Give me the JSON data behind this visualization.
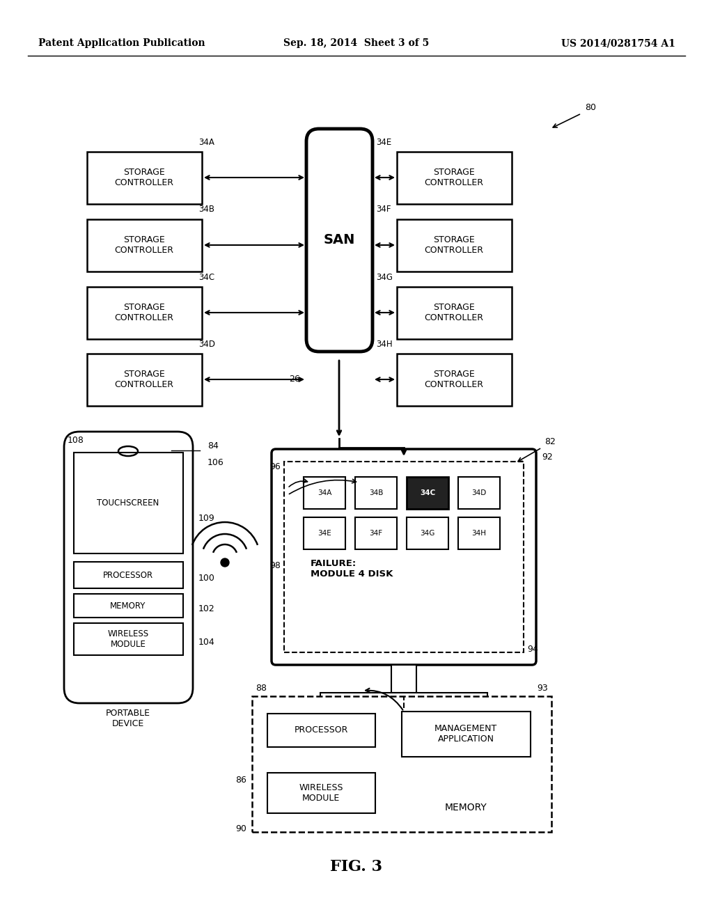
{
  "title": "FIG. 3",
  "header_left": "Patent Application Publication",
  "header_center": "Sep. 18, 2014  Sheet 3 of 5",
  "header_right": "US 2014/0281754 A1",
  "bg_color": "#ffffff",
  "diagram_label": "80",
  "san_label": "SAN",
  "san_bottom_label": "26",
  "left_controllers": [
    "STORAGE\nCONTROLLER",
    "STORAGE\nCONTROLLER",
    "STORAGE\nCONTROLLER",
    "STORAGE\nCONTROLLER"
  ],
  "right_controllers": [
    "STORAGE\nCONTROLLER",
    "STORAGE\nCONTROLLER",
    "STORAGE\nCONTROLLER",
    "STORAGE\nCONTROLLER"
  ],
  "left_labels": [
    "34A",
    "34B",
    "34C",
    "34D"
  ],
  "right_labels": [
    "34E",
    "34F",
    "34G",
    "34H"
  ],
  "portable_device_label": "PORTABLE\nDEVICE",
  "portable_device_num": "84",
  "touchscreen_label": "TOUCHSCREEN",
  "touchscreen_num": "106",
  "camera_num": "108",
  "processor_label": "PROCESSOR",
  "processor_num": "100",
  "memory_label": "MEMORY",
  "memory_num": "102",
  "wireless_label": "WIRELESS\nMODULE",
  "wireless_num": "104",
  "wireless_icon_num": "109",
  "computer_num": "82",
  "screen_outer_num": "92",
  "screen_inner_num": "94",
  "modules_num": "96",
  "module_labels": [
    "34A",
    "34B",
    "34C",
    "34D",
    "34E",
    "34F",
    "34G",
    "34H"
  ],
  "failure_text": "FAILURE:\nMODULE 4 DISK",
  "failure_num": "98",
  "server_box_num": "88",
  "server_box_num2": "93",
  "server_label1": "PROCESSOR",
  "server_label2": "WIRELESS\nMODULE",
  "server_label3": "MANAGEMENT\nAPPLICATION",
  "server_label4": "MEMORY",
  "server_num_86": "86",
  "server_num_90": "90"
}
